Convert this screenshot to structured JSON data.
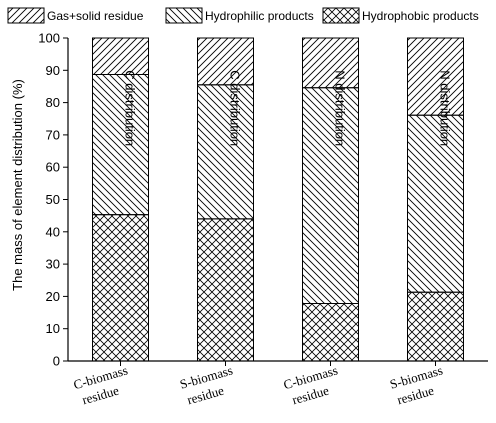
{
  "chart_data": {
    "type": "bar",
    "stacked": true,
    "ylabel": "The mass of element distribution (%)",
    "ylim": [
      0,
      100
    ],
    "yticks": [
      0,
      10,
      20,
      30,
      40,
      50,
      60,
      70,
      80,
      90,
      100
    ],
    "categories": [
      [
        "C-biomass",
        "residue"
      ],
      [
        "S-biomass",
        "residue"
      ],
      [
        "C-biomass",
        "residue"
      ],
      [
        "S-biomass",
        "residue"
      ]
    ],
    "series": [
      {
        "name": "Hydrophobic products",
        "pattern": "crosshatch",
        "values": [
          45.3,
          44.0,
          17.8,
          21.3
        ]
      },
      {
        "name": "Hydrophilic products",
        "pattern": "backslash",
        "values": [
          43.4,
          41.5,
          66.8,
          54.8
        ]
      },
      {
        "name": "Gas+solid residue",
        "pattern": "slash",
        "values": [
          11.3,
          14.5,
          15.4,
          23.9
        ]
      }
    ],
    "legend": {
      "placement": "top",
      "order": [
        "Gas+solid residue",
        "Hydrophilic products",
        "Hydrophobic products"
      ]
    },
    "annotations": [
      "C distribution",
      "C distribution",
      "N distribution",
      "N distribution"
    ],
    "grid": false,
    "colors": {
      "ink": "#000000",
      "fill": "#ffffff"
    }
  }
}
